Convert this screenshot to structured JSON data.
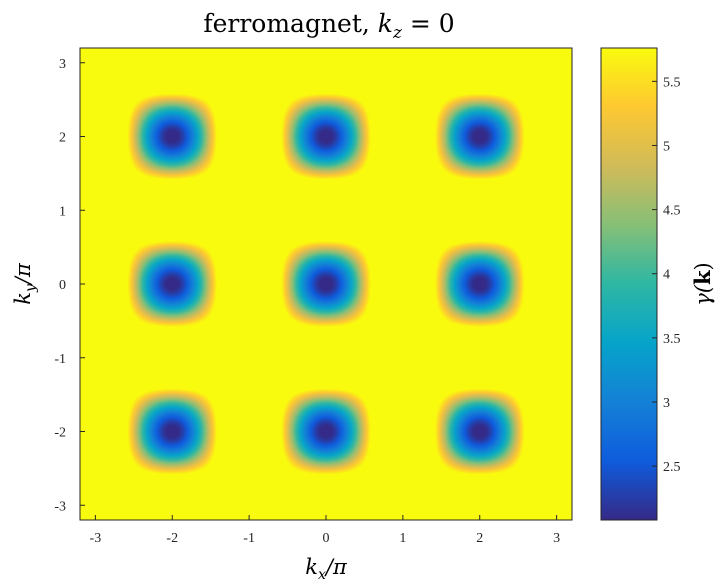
{
  "chart_data": {
    "type": "heatmap",
    "title": "ferromagnet, k_z = 0",
    "xlabel": "k_x/π",
    "ylabel": "k_y/π",
    "colorbar_label": "γ(k)",
    "x_ticks": [
      "-3",
      "-2",
      "-1",
      "0",
      "1",
      "2",
      "3"
    ],
    "y_ticks": [
      "3",
      "2",
      "1",
      "0",
      "-1",
      "-2",
      "-3"
    ],
    "colorbar_ticks": [
      "5.5",
      "5",
      "4.5",
      "4",
      "3.5",
      "3",
      "2.5"
    ],
    "xlim": [
      -3.2,
      3.2
    ],
    "ylim": [
      -3.2,
      3.2
    ],
    "clim": [
      2.08,
      5.76
    ],
    "colormap": "parula",
    "colormap_stops": [
      "#352a87",
      "#0f5cdd",
      "#1481d6",
      "#06a4ca",
      "#2eb7a4",
      "#87bf77",
      "#d1bb59",
      "#fec832",
      "#f9fb0e"
    ],
    "function": "gamma(kx,ky) = 6 - cos(kx) - cos(ky) - 2*cos(kx)*cos(ky), with kx,ky in units of pi on the axes; minimum 2 at origin, maximum ~5.76 near corners",
    "grid": false,
    "legend": "none"
  }
}
